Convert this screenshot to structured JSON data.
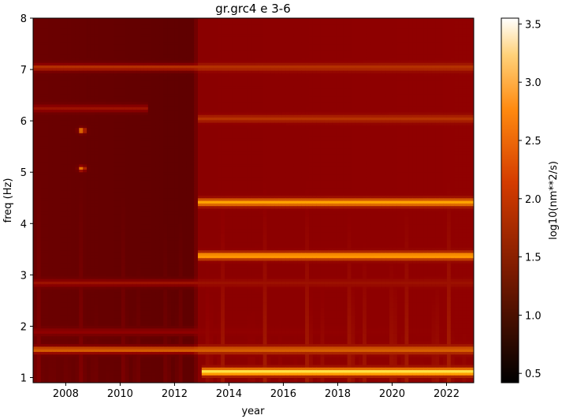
{
  "chart_data": {
    "type": "heatmap",
    "title": "gr.grc4 e 3-6",
    "xlabel": "year",
    "ylabel": "freq (Hz)",
    "xlim": [
      2006.8,
      2023.0
    ],
    "ylim": [
      0.9,
      8.0
    ],
    "x_ticks": [
      "2008",
      "2010",
      "2012",
      "2014",
      "2016",
      "2018",
      "2020",
      "2022"
    ],
    "x_tick_values": [
      2008,
      2010,
      2012,
      2014,
      2016,
      2018,
      2020,
      2022
    ],
    "y_ticks": [
      "1",
      "2",
      "3",
      "4",
      "5",
      "6",
      "7",
      "8"
    ],
    "y_tick_values": [
      1,
      2,
      3,
      4,
      5,
      6,
      7,
      8
    ],
    "colorbar": {
      "label": "log10(nm**2/s)",
      "range": [
        0.42,
        3.55
      ],
      "ticks": [
        "0.5",
        "1.0",
        "1.5",
        "2.0",
        "2.5",
        "3.0",
        "3.5"
      ],
      "tick_values": [
        0.5,
        1.0,
        1.5,
        2.0,
        2.5,
        3.0,
        3.5
      ],
      "colormap": "gist_heat"
    },
    "baseline": [
      {
        "x": 2006.8,
        "value": 1.3
      },
      {
        "x": 2012.7,
        "value": 1.2
      },
      {
        "x": 2012.9,
        "value": 1.55
      },
      {
        "x": 2023.0,
        "value": 1.6
      }
    ],
    "features": [
      {
        "name": "band",
        "y": 4.42,
        "x_start": 2012.9,
        "x_end": 2023.0,
        "peak": 2.6
      },
      {
        "name": "band",
        "y": 3.38,
        "x_start": 2012.9,
        "x_end": 2023.0,
        "peak": 2.6
      },
      {
        "name": "band",
        "y": 1.12,
        "x_start": 2013.0,
        "x_end": 2023.0,
        "peak": 3.0
      },
      {
        "name": "band",
        "y": 1.55,
        "x_start": 2006.8,
        "x_end": 2023.0,
        "peak": 2.2
      },
      {
        "name": "band",
        "y": 7.05,
        "x_start": 2006.8,
        "x_end": 2023.0,
        "peak": 1.9
      },
      {
        "name": "band",
        "y": 6.05,
        "x_start": 2012.9,
        "x_end": 2023.0,
        "peak": 1.9
      },
      {
        "name": "band",
        "y": 6.25,
        "x_start": 2006.8,
        "x_end": 2011.0,
        "peak": 1.7
      },
      {
        "name": "band",
        "y": 2.85,
        "x_start": 2006.8,
        "x_end": 2023.0,
        "peak": 1.7
      },
      {
        "name": "band",
        "y": 1.9,
        "x_start": 2006.8,
        "x_end": 2023.0,
        "peak": 1.6
      },
      {
        "name": "spot",
        "x": 2008.6,
        "y": 5.82,
        "peak": 2.6
      },
      {
        "name": "spot",
        "x": 2008.6,
        "y": 5.08,
        "peak": 2.4
      }
    ]
  }
}
